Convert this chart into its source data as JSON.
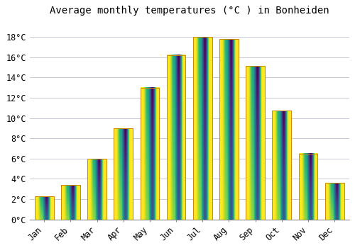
{
  "title": "Average monthly temperatures (°C ) in Bonheiden",
  "months": [
    "Jan",
    "Feb",
    "Mar",
    "Apr",
    "May",
    "Jun",
    "Jul",
    "Aug",
    "Sep",
    "Oct",
    "Nov",
    "Dec"
  ],
  "values": [
    2.3,
    3.4,
    6.0,
    9.0,
    13.0,
    16.2,
    18.0,
    17.8,
    15.1,
    10.7,
    6.5,
    3.6
  ],
  "bar_color": "#FFA500",
  "bar_top_color": "#FFD080",
  "bar_edge_color": "#CC8800",
  "background_color": "#FFFFFF",
  "plot_bg_color": "#FFFFFF",
  "grid_color": "#C8C8D8",
  "title_fontsize": 10,
  "tick_fontsize": 8.5,
  "yticks": [
    0,
    2,
    4,
    6,
    8,
    10,
    12,
    14,
    16,
    18
  ],
  "ylim": [
    0,
    19.5
  ],
  "bar_width": 0.72
}
